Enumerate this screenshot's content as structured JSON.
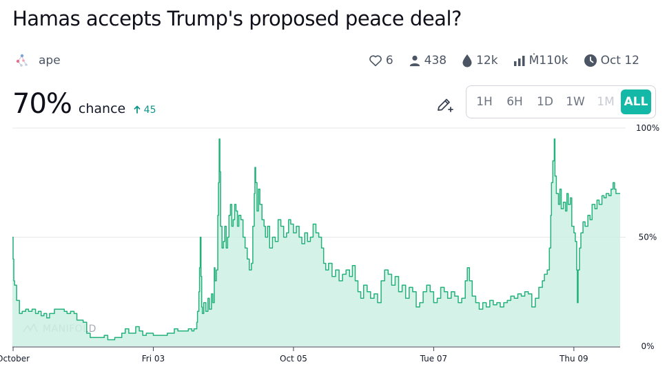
{
  "market": {
    "title": "Hamas accepts Trump's proposed peace deal?",
    "creator": "ape",
    "stats": {
      "likes": "6",
      "traders": "438",
      "liquidity": "12k",
      "volume": "Ṁ110k",
      "close_date": "Oct 12"
    },
    "probability": "70%",
    "chance_label": "chance",
    "change": "45"
  },
  "time_ranges": [
    {
      "label": "1H",
      "state": "normal"
    },
    {
      "label": "6H",
      "state": "normal"
    },
    {
      "label": "1D",
      "state": "normal"
    },
    {
      "label": "1W",
      "state": "normal"
    },
    {
      "label": "1M",
      "state": "disabled"
    },
    {
      "label": "ALL",
      "state": "active"
    }
  ],
  "watermark": "MANIFOLD",
  "icons": {
    "creator_avatar": "molecule-avatar-icon",
    "likes": "heart-icon",
    "traders": "user-icon",
    "liquidity": "droplet-icon",
    "volume": "bar-chart-icon",
    "close_date": "clock-icon",
    "edit": "pencil-plus-icon",
    "change": "arrow-up-icon"
  },
  "colors": {
    "accent": "#14b8a6",
    "line": "#22b17a",
    "fill": "#cdf0e3",
    "change": "#0d9488"
  },
  "chart_data": {
    "type": "area",
    "title": "",
    "xlabel": "",
    "ylabel": "",
    "ylim": [
      0,
      100
    ],
    "y_ticks": [
      "0%",
      "50%",
      "100%"
    ],
    "x_ticks": [
      {
        "label": "October",
        "day": 1.0
      },
      {
        "label": "Fri 03",
        "day": 3.0
      },
      {
        "label": "Oct 05",
        "day": 5.0
      },
      {
        "label": "Tue 07",
        "day": 7.0
      },
      {
        "label": "Thu 09",
        "day": 9.0
      }
    ],
    "x_unit": "day of October 2025",
    "xlim": [
      0.99,
      9.66
    ],
    "grid": "horizontal at 50%",
    "series": [
      {
        "points": [
          [
            0.99,
            50
          ],
          [
            1.0,
            40
          ],
          [
            1.01,
            30
          ],
          [
            1.02,
            28
          ],
          [
            1.05,
            21
          ],
          [
            1.09,
            15
          ],
          [
            1.13,
            16
          ],
          [
            1.18,
            17
          ],
          [
            1.22,
            16
          ],
          [
            1.27,
            17
          ],
          [
            1.32,
            15
          ],
          [
            1.36,
            16
          ],
          [
            1.4,
            14
          ],
          [
            1.44,
            15
          ],
          [
            1.48,
            13
          ],
          [
            1.52,
            15
          ],
          [
            1.56,
            15
          ],
          [
            1.59,
            17
          ],
          [
            1.66,
            17
          ],
          [
            1.73,
            16
          ],
          [
            1.77,
            15
          ],
          [
            1.82,
            16
          ],
          [
            1.87,
            15
          ],
          [
            1.91,
            12
          ],
          [
            2.0,
            11
          ],
          [
            2.05,
            6
          ],
          [
            2.1,
            4
          ],
          [
            2.2,
            4
          ],
          [
            2.3,
            5
          ],
          [
            2.35,
            3
          ],
          [
            2.45,
            4
          ],
          [
            2.55,
            6
          ],
          [
            2.6,
            8
          ],
          [
            2.65,
            6
          ],
          [
            2.75,
            9
          ],
          [
            2.8,
            7
          ],
          [
            2.85,
            5
          ],
          [
            2.9,
            6
          ],
          [
            3.0,
            5
          ],
          [
            3.1,
            5
          ],
          [
            3.2,
            6
          ],
          [
            3.3,
            8
          ],
          [
            3.35,
            7
          ],
          [
            3.45,
            7
          ],
          [
            3.5,
            8
          ],
          [
            3.55,
            7
          ],
          [
            3.58,
            8
          ],
          [
            3.62,
            11
          ],
          [
            3.63,
            16
          ],
          [
            3.65,
            25
          ],
          [
            3.66,
            36
          ],
          [
            3.67,
            50
          ],
          [
            3.68,
            32
          ],
          [
            3.69,
            18
          ],
          [
            3.7,
            15
          ],
          [
            3.72,
            20
          ],
          [
            3.75,
            16
          ],
          [
            3.78,
            22
          ],
          [
            3.8,
            17
          ],
          [
            3.83,
            24
          ],
          [
            3.85,
            20
          ],
          [
            3.87,
            36
          ],
          [
            3.88,
            30
          ],
          [
            3.9,
            35
          ],
          [
            3.92,
            60
          ],
          [
            3.93,
            75
          ],
          [
            3.94,
            95
          ],
          [
            3.95,
            80
          ],
          [
            3.96,
            55
          ],
          [
            3.98,
            45
          ],
          [
            4.0,
            48
          ],
          [
            4.02,
            55
          ],
          [
            4.04,
            45
          ],
          [
            4.06,
            50
          ],
          [
            4.08,
            60
          ],
          [
            4.1,
            65
          ],
          [
            4.12,
            55
          ],
          [
            4.14,
            58
          ],
          [
            4.16,
            65
          ],
          [
            4.18,
            62
          ],
          [
            4.2,
            55
          ],
          [
            4.22,
            60
          ],
          [
            4.25,
            58
          ],
          [
            4.28,
            50
          ],
          [
            4.31,
            45
          ],
          [
            4.34,
            40
          ],
          [
            4.37,
            35
          ],
          [
            4.4,
            38
          ],
          [
            4.42,
            55
          ],
          [
            4.44,
            70
          ],
          [
            4.45,
            82
          ],
          [
            4.46,
            75
          ],
          [
            4.48,
            62
          ],
          [
            4.5,
            72
          ],
          [
            4.52,
            65
          ],
          [
            4.55,
            58
          ],
          [
            4.58,
            55
          ],
          [
            4.6,
            50
          ],
          [
            4.63,
            55
          ],
          [
            4.66,
            45
          ],
          [
            4.7,
            50
          ],
          [
            4.74,
            48
          ],
          [
            4.78,
            58
          ],
          [
            4.82,
            55
          ],
          [
            4.86,
            50
          ],
          [
            4.9,
            52
          ],
          [
            4.93,
            58
          ],
          [
            4.96,
            56
          ],
          [
            5.0,
            52
          ],
          [
            5.04,
            55
          ],
          [
            5.08,
            50
          ],
          [
            5.12,
            47
          ],
          [
            5.16,
            52
          ],
          [
            5.2,
            48
          ],
          [
            5.24,
            50
          ],
          [
            5.28,
            56
          ],
          [
            5.32,
            52
          ],
          [
            5.36,
            50
          ],
          [
            5.4,
            45
          ],
          [
            5.43,
            38
          ],
          [
            5.46,
            35
          ],
          [
            5.5,
            38
          ],
          [
            5.55,
            32
          ],
          [
            5.6,
            35
          ],
          [
            5.65,
            30
          ],
          [
            5.7,
            33
          ],
          [
            5.75,
            35
          ],
          [
            5.8,
            32
          ],
          [
            5.84,
            37
          ],
          [
            5.88,
            30
          ],
          [
            5.92,
            25
          ],
          [
            5.96,
            22
          ],
          [
            6.0,
            28
          ],
          [
            6.05,
            25
          ],
          [
            6.1,
            22
          ],
          [
            6.15,
            24
          ],
          [
            6.2,
            20
          ],
          [
            6.25,
            30
          ],
          [
            6.3,
            35
          ],
          [
            6.35,
            33
          ],
          [
            6.4,
            28
          ],
          [
            6.45,
            32
          ],
          [
            6.5,
            25
          ],
          [
            6.55,
            28
          ],
          [
            6.6,
            22
          ],
          [
            6.65,
            27
          ],
          [
            6.7,
            25
          ],
          [
            6.75,
            18
          ],
          [
            6.8,
            20
          ],
          [
            6.85,
            25
          ],
          [
            6.9,
            28
          ],
          [
            6.95,
            25
          ],
          [
            7.0,
            20
          ],
          [
            7.05,
            22
          ],
          [
            7.1,
            27
          ],
          [
            7.15,
            25
          ],
          [
            7.2,
            22
          ],
          [
            7.25,
            25
          ],
          [
            7.3,
            23
          ],
          [
            7.35,
            20
          ],
          [
            7.4,
            22
          ],
          [
            7.45,
            30
          ],
          [
            7.48,
            36
          ],
          [
            7.51,
            30
          ],
          [
            7.55,
            23
          ],
          [
            7.6,
            20
          ],
          [
            7.65,
            17
          ],
          [
            7.7,
            20
          ],
          [
            7.75,
            18
          ],
          [
            7.8,
            21
          ],
          [
            7.85,
            19
          ],
          [
            7.9,
            20
          ],
          [
            7.95,
            18
          ],
          [
            8.0,
            20
          ],
          [
            8.05,
            21
          ],
          [
            8.1,
            23
          ],
          [
            8.15,
            22
          ],
          [
            8.2,
            24
          ],
          [
            8.25,
            23
          ],
          [
            8.3,
            25
          ],
          [
            8.35,
            24
          ],
          [
            8.4,
            18
          ],
          [
            8.45,
            22
          ],
          [
            8.5,
            27
          ],
          [
            8.55,
            30
          ],
          [
            8.58,
            33
          ],
          [
            8.62,
            35
          ],
          [
            8.65,
            45
          ],
          [
            8.67,
            60
          ],
          [
            8.68,
            75
          ],
          [
            8.7,
            85
          ],
          [
            8.72,
            95
          ],
          [
            8.73,
            78
          ],
          [
            8.75,
            70
          ],
          [
            8.78,
            65
          ],
          [
            8.8,
            72
          ],
          [
            8.82,
            63
          ],
          [
            8.85,
            66
          ],
          [
            8.88,
            62
          ],
          [
            8.9,
            70
          ],
          [
            8.92,
            65
          ],
          [
            8.95,
            68
          ],
          [
            8.97,
            55
          ],
          [
            9.0,
            52
          ],
          [
            9.02,
            48
          ],
          [
            9.04,
            35
          ],
          [
            9.05,
            20
          ],
          [
            9.06,
            35
          ],
          [
            9.08,
            45
          ],
          [
            9.1,
            52
          ],
          [
            9.13,
            57
          ],
          [
            9.16,
            55
          ],
          [
            9.2,
            60
          ],
          [
            9.23,
            58
          ],
          [
            9.26,
            65
          ],
          [
            9.3,
            63
          ],
          [
            9.33,
            67
          ],
          [
            9.36,
            65
          ],
          [
            9.4,
            69
          ],
          [
            9.43,
            68
          ],
          [
            9.46,
            70
          ],
          [
            9.5,
            69
          ],
          [
            9.53,
            72
          ],
          [
            9.56,
            75
          ],
          [
            9.58,
            72
          ],
          [
            9.6,
            70
          ],
          [
            9.63,
            70
          ],
          [
            9.66,
            70
          ]
        ]
      }
    ]
  }
}
